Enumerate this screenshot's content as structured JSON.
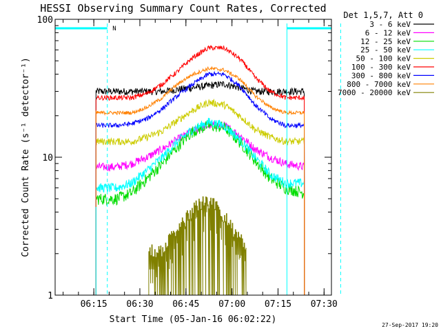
{
  "chart_data": {
    "type": "line",
    "title": "HESSI Observing Summary Count Rates, Corrected",
    "xlabel": "Start Time (05-Jan-16 06:02:22)",
    "ylabel": "Corrected Count Rate (s⁻¹ detector⁻¹)",
    "x_unit": "minutes after 06:02:22 UT",
    "xlim": [
      0,
      90
    ],
    "ylim": [
      1,
      100
    ],
    "log_y": true,
    "grid": false,
    "x_ticks": [
      {
        "value": 12.6,
        "label": "06:15"
      },
      {
        "value": 27.6,
        "label": "06:30"
      },
      {
        "value": 42.6,
        "label": "06:45"
      },
      {
        "value": 57.6,
        "label": "07:00"
      },
      {
        "value": 72.6,
        "label": "07:15"
      },
      {
        "value": 87.6,
        "label": "07:30"
      }
    ],
    "y_ticks": [
      {
        "value": 1,
        "label": "1"
      },
      {
        "value": 10,
        "label": "10"
      },
      {
        "value": 100,
        "label": "100"
      }
    ],
    "legend": {
      "placement": "right",
      "header": "Det 1,5,7, Att 0",
      "entries": [
        {
          "label": "3 - 6 keV",
          "color": "#000000"
        },
        {
          "label": "6 - 12 keV",
          "color": "#ff00ff"
        },
        {
          "label": "12 - 25 keV",
          "color": "#00dd00"
        },
        {
          "label": "25 - 50 keV",
          "color": "#00ffff"
        },
        {
          "label": "50 - 100 keV",
          "color": "#cccc00"
        },
        {
          "label": "100 - 300 keV",
          "color": "#ff0000"
        },
        {
          "label": "300 - 800 keV",
          "color": "#0000ff"
        },
        {
          "label": "800 - 7000 keV",
          "color": "#ff8000"
        },
        {
          "label": "7000 - 20000 keV",
          "color": "#808000"
        }
      ]
    },
    "observing_windows": {
      "color": "#00ffff",
      "segments": [
        [
          0,
          17
        ],
        [
          75.5,
          94
        ]
      ],
      "flag_text": "N",
      "flag_x": 19.3,
      "data_start": 13.3,
      "data_end": 81.2,
      "dashed_markers": [
        17,
        93
      ],
      "solid_markers": [
        0,
        75.5
      ]
    },
    "series": [
      {
        "name": "3 - 6 keV",
        "color": "#000000",
        "x": [
          13.3,
          20,
          25,
          30,
          35,
          40,
          45,
          50,
          55,
          60,
          65,
          70,
          75,
          81.2
        ],
        "y": [
          30,
          30,
          30,
          30,
          30,
          31,
          32,
          33,
          34,
          32,
          30,
          30,
          30,
          30
        ],
        "noise": 0.06
      },
      {
        "name": "6 - 12 keV",
        "color": "#ff00ff",
        "x": [
          13.3,
          20,
          25,
          30,
          35,
          40,
          45,
          50,
          55,
          60,
          65,
          70,
          75,
          81.2
        ],
        "y": [
          8.5,
          8.5,
          9,
          10,
          11.5,
          13.5,
          15.5,
          17,
          17,
          14.5,
          11.5,
          10,
          9,
          8.5
        ],
        "noise": 0.07
      },
      {
        "name": "12 - 25 keV",
        "color": "#00dd00",
        "x": [
          13.3,
          20,
          25,
          30,
          35,
          40,
          45,
          50,
          55,
          60,
          65,
          70,
          75,
          81.2
        ],
        "y": [
          5,
          5,
          5.5,
          7,
          9,
          12,
          15.5,
          17,
          16.5,
          13,
          9.5,
          7,
          6,
          5.5
        ],
        "noise": 0.1
      },
      {
        "name": "25 - 50 keV",
        "color": "#00ffff",
        "x": [
          13.3,
          20,
          25,
          30,
          35,
          40,
          45,
          50,
          55,
          60,
          65,
          70,
          75,
          81.2
        ],
        "y": [
          6,
          6,
          6.5,
          8,
          10,
          13,
          16,
          18,
          17,
          13.5,
          10,
          7.5,
          6.5,
          6.5
        ],
        "noise": 0.08
      },
      {
        "name": "50 - 100 keV",
        "color": "#cccc00",
        "x": [
          13.3,
          20,
          25,
          30,
          35,
          40,
          45,
          50,
          55,
          60,
          65,
          70,
          75,
          81.2
        ],
        "y": [
          13,
          13,
          13,
          14,
          15.5,
          18.5,
          22,
          25,
          24,
          20,
          16,
          14,
          13,
          13
        ],
        "noise": 0.06
      },
      {
        "name": "100 - 300 keV",
        "color": "#ff0000",
        "x": [
          13.3,
          20,
          25,
          30,
          35,
          40,
          45,
          50,
          55,
          60,
          65,
          70,
          75,
          81.2
        ],
        "y": [
          27,
          27,
          27,
          29,
          34,
          42,
          53,
          62,
          62,
          52,
          38,
          30,
          27,
          27
        ],
        "noise": 0.04
      },
      {
        "name": "300 - 800 keV",
        "color": "#0000ff",
        "x": [
          13.3,
          20,
          25,
          30,
          35,
          40,
          45,
          50,
          55,
          60,
          65,
          70,
          75,
          81.2
        ],
        "y": [
          17,
          17,
          17.5,
          19,
          22.5,
          28,
          34,
          40,
          40,
          33,
          24,
          19,
          17,
          17
        ],
        "noise": 0.04
      },
      {
        "name": "800 - 7000 keV",
        "color": "#ff8000",
        "x": [
          13.3,
          20,
          25,
          30,
          35,
          40,
          45,
          50,
          55,
          60,
          65,
          70,
          75,
          81.2
        ],
        "y": [
          21,
          21,
          21,
          23,
          27,
          34,
          40,
          44,
          43,
          37,
          28,
          23,
          21,
          21
        ],
        "noise": 0.03
      },
      {
        "name": "7000 - 20000 keV",
        "color": "#808000",
        "x": [
          30.5,
          35,
          38,
          41,
          45,
          48,
          51,
          54,
          57,
          60,
          62.5
        ],
        "y": [
          2,
          2,
          2.5,
          3,
          4,
          4.5,
          4.5,
          3.8,
          3,
          2.5,
          2
        ],
        "noise": 0.25,
        "step_low": 1.0
      }
    ]
  },
  "footer": {
    "date_stamp": "27-Sep-2017 19:20"
  }
}
